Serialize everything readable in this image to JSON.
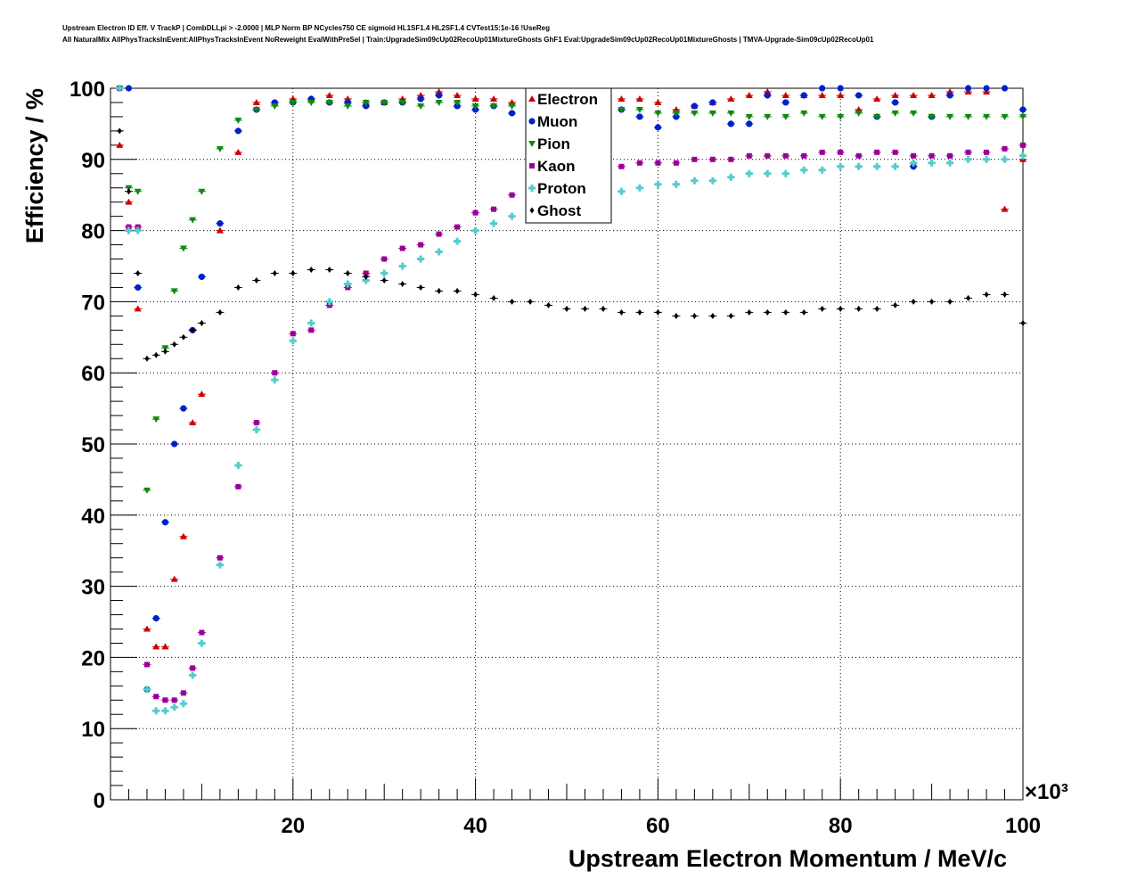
{
  "header": {
    "line1": "Upstream Electron ID Eff. V TrackP | CombDLLpi > -2.0000 | MLP Norm BP NCycles750 CE sigmoid HL1SF1.4 HL2SF1.4 CVTest15:1e-16 !UseReg",
    "line2": "All NaturalMix AllPhysTracksInEvent:AllPhysTracksInEvent NoReweight EvalWithPreSel | Train:UpgradeSim09cUp02RecoUp01MixtureGhosts GhF1 Eval:UpgradeSim09cUp02RecoUp01MixtureGhosts | TMVA-Upgrade-Sim09cUp02RecoUp01"
  },
  "chart_data": {
    "type": "scatter",
    "xlabel": "Upstream Electron Momentum / MeV/c",
    "ylabel": "Efficiency / %",
    "x_multiplier": "×10³",
    "xlim": [
      0,
      100
    ],
    "ylim": [
      0,
      100
    ],
    "xticks": [
      "20",
      "40",
      "60",
      "80",
      "100"
    ],
    "yticks": [
      "0",
      "10",
      "20",
      "30",
      "40",
      "50",
      "60",
      "70",
      "80",
      "90",
      "100"
    ],
    "grid": true,
    "legend_position": "top-center",
    "x": [
      1,
      2,
      3,
      4,
      5,
      6,
      7,
      8,
      9,
      10,
      12,
      14,
      16,
      18,
      20,
      22,
      24,
      26,
      28,
      30,
      32,
      34,
      36,
      38,
      40,
      42,
      44,
      46,
      48,
      50,
      52,
      54,
      56,
      58,
      60,
      62,
      64,
      66,
      68,
      70,
      72,
      74,
      76,
      78,
      80,
      82,
      84,
      86,
      88,
      90,
      92,
      94,
      96,
      98,
      100
    ],
    "series": [
      {
        "name": "Electron",
        "color": "#cc0000",
        "marker": "triangle",
        "values": [
          92,
          84,
          69,
          24,
          21.5,
          21.5,
          31,
          37,
          53,
          57,
          80,
          91,
          98,
          98,
          98.5,
          98.5,
          99,
          98.5,
          98,
          98,
          98.5,
          99,
          99.5,
          99,
          98.5,
          98.5,
          98,
          97.5,
          98.5,
          99,
          98.5,
          99,
          98.5,
          98.5,
          98,
          97,
          97.5,
          98,
          98.5,
          99,
          99.5,
          99,
          99,
          99,
          99,
          97,
          98.5,
          99,
          99,
          99,
          99.5,
          99.5,
          99.5,
          83,
          90
        ]
      },
      {
        "name": "Muon",
        "color": "#0020cc",
        "marker": "circle",
        "values": [
          100,
          100,
          72,
          15.5,
          25.5,
          39,
          50,
          55,
          66,
          73.5,
          81,
          94,
          97,
          98,
          98,
          98.5,
          98,
          98,
          97.5,
          98,
          98,
          98.5,
          99,
          97.5,
          97,
          97.5,
          96.5,
          98,
          98,
          98.5,
          99,
          98.5,
          97,
          96,
          94.5,
          96,
          97.5,
          98,
          95,
          95,
          99,
          98,
          99,
          100,
          100,
          99,
          96,
          98,
          89,
          96,
          99,
          100,
          100,
          100,
          97
        ]
      },
      {
        "name": "Pion",
        "color": "#118811",
        "marker": "triangle-down",
        "values": [
          100,
          86,
          85.5,
          43.5,
          53.5,
          63.5,
          71.5,
          77.5,
          81.5,
          85.5,
          91.5,
          95.5,
          97,
          97.5,
          98,
          98,
          98,
          97.5,
          98,
          98,
          98,
          97.5,
          98,
          98,
          97.5,
          97.5,
          97.5,
          97,
          97,
          97.5,
          97.5,
          97,
          97,
          97,
          96.5,
          96.5,
          96.5,
          96.5,
          96.5,
          96,
          96,
          96,
          96.5,
          96,
          96,
          96.5,
          96,
          96.5,
          96.5,
          96,
          96,
          96,
          96,
          96,
          96
        ]
      },
      {
        "name": "Kaon",
        "color": "#990099",
        "marker": "square",
        "values": [
          100,
          80.5,
          80.5,
          19,
          14.5,
          14,
          14,
          15,
          18.5,
          23.5,
          34,
          44,
          53,
          60,
          65.5,
          66,
          69.5,
          72,
          74,
          76,
          77.5,
          78,
          79.5,
          80.5,
          82.5,
          83,
          85,
          86,
          87,
          88,
          88,
          88.5,
          89,
          89.5,
          89.5,
          89.5,
          90,
          90,
          90,
          90.5,
          90.5,
          90.5,
          90.5,
          91,
          91,
          90.5,
          91,
          91,
          90.5,
          90.5,
          90.5,
          91,
          91,
          91.5,
          92
        ]
      },
      {
        "name": "Proton",
        "color": "#55cccc",
        "marker": "cross",
        "values": [
          100,
          80,
          80,
          15.5,
          12.5,
          12.5,
          13,
          13.5,
          17.5,
          22,
          33,
          47,
          52,
          59,
          64.5,
          67,
          70,
          72.5,
          73,
          74,
          75,
          76,
          77,
          78.5,
          80,
          81,
          82,
          83,
          84,
          84.5,
          85,
          85,
          85.5,
          86,
          86.5,
          86.5,
          87,
          87,
          87.5,
          88,
          88,
          88,
          88.5,
          88.5,
          89,
          89,
          89,
          89,
          89.5,
          89.5,
          89.5,
          90,
          90,
          90,
          90.5
        ]
      },
      {
        "name": "Ghost",
        "color": "#000000",
        "marker": "diamond",
        "values": [
          94,
          85.5,
          74,
          62,
          62.5,
          63,
          64,
          65,
          66,
          67,
          68.5,
          72,
          73,
          74,
          74,
          74.5,
          74.5,
          74,
          73.5,
          73,
          72.5,
          72,
          71.5,
          71.5,
          71,
          70.5,
          70,
          70,
          69.5,
          69,
          69,
          69,
          68.5,
          68.5,
          68.5,
          68,
          68,
          68,
          68,
          68.5,
          68.5,
          68.5,
          68.5,
          69,
          69,
          69,
          69,
          69.5,
          70,
          70,
          70,
          70.5,
          71,
          71,
          67
        ]
      }
    ]
  }
}
